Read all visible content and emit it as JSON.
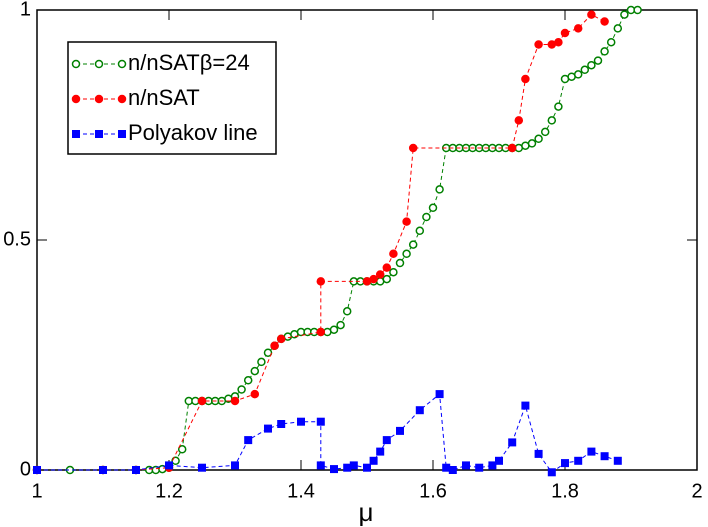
{
  "chart_data": {
    "type": "line",
    "x_label": "μ",
    "xlim": [
      1,
      2
    ],
    "xticks": [
      1,
      1.2,
      1.4,
      1.6,
      1.8,
      2
    ],
    "ylim": [
      0,
      1
    ],
    "yticks": [
      0,
      0.5,
      1
    ],
    "series": [
      {
        "name": "n/nSATβ=24",
        "color": "#008000",
        "marker": "open-circle",
        "x": [
          1.0,
          1.05,
          1.1,
          1.15,
          1.17,
          1.18,
          1.19,
          1.2,
          1.21,
          1.22,
          1.23,
          1.24,
          1.25,
          1.26,
          1.27,
          1.28,
          1.29,
          1.3,
          1.31,
          1.32,
          1.33,
          1.34,
          1.35,
          1.36,
          1.37,
          1.38,
          1.39,
          1.4,
          1.41,
          1.42,
          1.43,
          1.44,
          1.45,
          1.46,
          1.47,
          1.48,
          1.49,
          1.5,
          1.51,
          1.52,
          1.53,
          1.54,
          1.55,
          1.56,
          1.57,
          1.58,
          1.59,
          1.6,
          1.61,
          1.62,
          1.63,
          1.64,
          1.65,
          1.66,
          1.67,
          1.68,
          1.69,
          1.7,
          1.71,
          1.72,
          1.73,
          1.74,
          1.75,
          1.76,
          1.77,
          1.78,
          1.79,
          1.8,
          1.81,
          1.82,
          1.83,
          1.84,
          1.85,
          1.86,
          1.87,
          1.88,
          1.89,
          1.9,
          1.91
        ],
        "values": [
          0,
          0,
          0,
          0,
          0,
          0,
          0.002,
          0.005,
          0.02,
          0.045,
          0.15,
          0.15,
          0.15,
          0.15,
          0.15,
          0.15,
          0.155,
          0.16,
          0.175,
          0.195,
          0.215,
          0.235,
          0.255,
          0.27,
          0.285,
          0.29,
          0.295,
          0.3,
          0.3,
          0.3,
          0.3,
          0.3,
          0.305,
          0.315,
          0.345,
          0.41,
          0.41,
          0.41,
          0.41,
          0.41,
          0.415,
          0.43,
          0.45,
          0.47,
          0.49,
          0.52,
          0.55,
          0.57,
          0.61,
          0.7,
          0.7,
          0.7,
          0.7,
          0.7,
          0.7,
          0.7,
          0.7,
          0.7,
          0.7,
          0.7,
          0.7,
          0.705,
          0.71,
          0.72,
          0.735,
          0.76,
          0.79,
          0.85,
          0.855,
          0.86,
          0.87,
          0.88,
          0.89,
          0.91,
          0.93,
          0.96,
          0.99,
          1,
          1
        ]
      },
      {
        "name": "n/nSAT",
        "color": "#ff0000",
        "marker": "filled-circle",
        "x": [
          1.0,
          1.1,
          1.15,
          1.2,
          1.25,
          1.3,
          1.33,
          1.36,
          1.37,
          1.43,
          1.43,
          1.5,
          1.51,
          1.52,
          1.53,
          1.54,
          1.56,
          1.57,
          1.72,
          1.73,
          1.74,
          1.76,
          1.78,
          1.79,
          1.8,
          1.82,
          1.84,
          1.86
        ],
        "values": [
          0,
          0,
          0,
          0.005,
          0.15,
          0.15,
          0.165,
          0.27,
          0.285,
          0.3,
          0.41,
          0.41,
          0.415,
          0.425,
          0.44,
          0.47,
          0.54,
          0.7,
          0.7,
          0.76,
          0.85,
          0.925,
          0.925,
          0.93,
          0.95,
          0.96,
          0.99,
          0.975
        ]
      },
      {
        "name": "Polyakov line",
        "color": "#0000ff",
        "marker": "square",
        "x": [
          1.0,
          1.1,
          1.15,
          1.2,
          1.25,
          1.3,
          1.32,
          1.35,
          1.37,
          1.4,
          1.43,
          1.43,
          1.45,
          1.47,
          1.48,
          1.5,
          1.51,
          1.52,
          1.53,
          1.55,
          1.58,
          1.61,
          1.62,
          1.63,
          1.65,
          1.67,
          1.69,
          1.7,
          1.72,
          1.74,
          1.76,
          1.78,
          1.8,
          1.82,
          1.84,
          1.86,
          1.88
        ],
        "values": [
          0,
          0,
          0,
          0.01,
          0.005,
          0.01,
          0.065,
          0.09,
          0.1,
          0.105,
          0.105,
          0.01,
          0.002,
          0.005,
          0.01,
          0.005,
          0.02,
          0.04,
          0.065,
          0.085,
          0.13,
          0.165,
          0.005,
          0.0,
          0.01,
          0.005,
          0.01,
          0.02,
          0.06,
          0.14,
          0.035,
          -0.005,
          0.015,
          0.02,
          0.04,
          0.03,
          0.02
        ]
      }
    ]
  }
}
